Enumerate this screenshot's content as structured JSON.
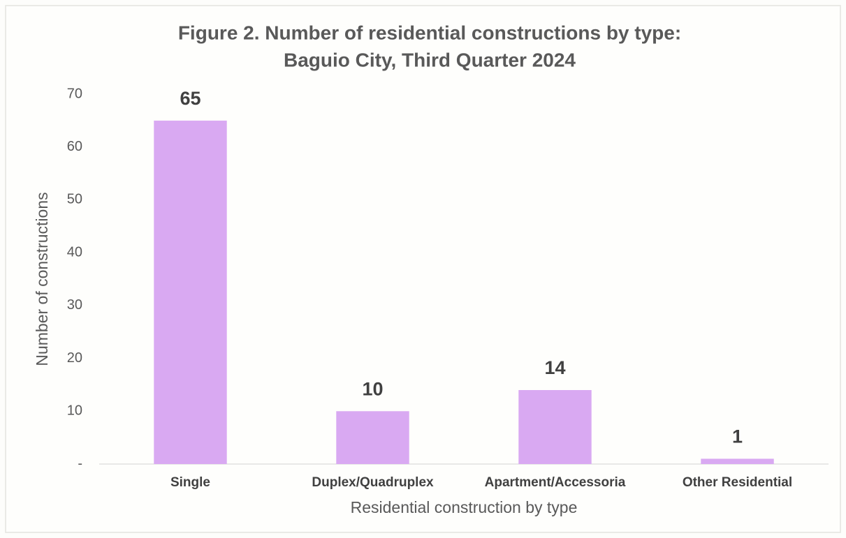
{
  "chart_data": {
    "type": "bar",
    "title": [
      "Figure 2. Number of residential constructions by type:",
      "Baguio City, Third Quarter 2024"
    ],
    "x_label": "Residential construction by type",
    "y_label": "Number of constructions",
    "categories": [
      "Single",
      "Duplex/Quadruplex",
      "Apartment/Accessoria",
      "Other Residential"
    ],
    "values": [
      65,
      10,
      14,
      1
    ],
    "color": "#d9a9f2",
    "ylim": [
      0,
      70
    ],
    "yticks": [
      {
        "value": 0,
        "label": "-"
      },
      10,
      20,
      30,
      40,
      50,
      60,
      70
    ],
    "grid": false
  }
}
